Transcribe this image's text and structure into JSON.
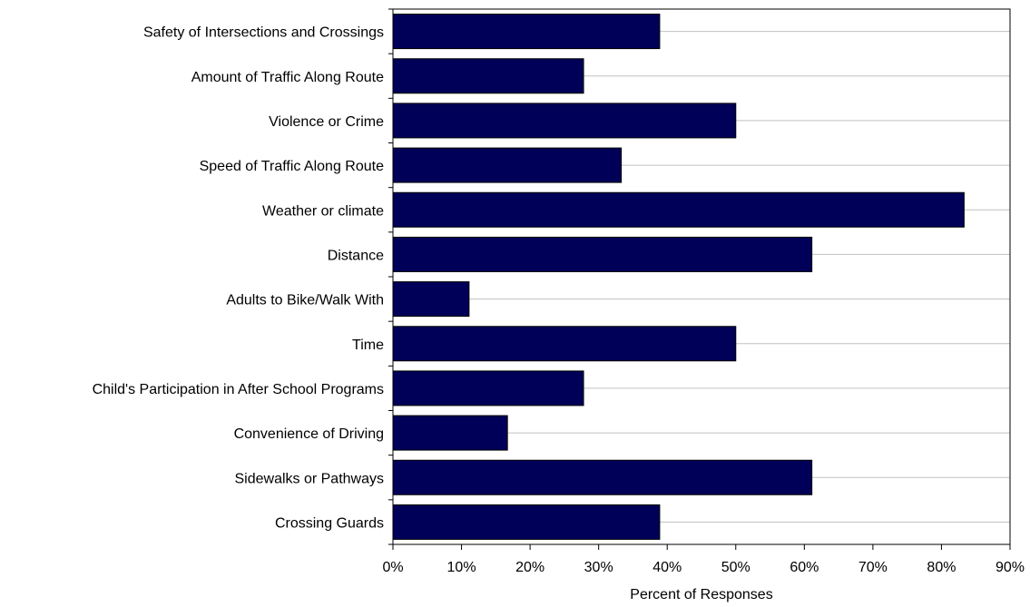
{
  "chart_data": {
    "type": "bar",
    "orientation": "horizontal",
    "categories": [
      "Safety of Intersections and Crossings",
      "Amount of Traffic Along Route",
      "Violence or Crime",
      "Speed of Traffic Along Route",
      "Weather or climate",
      "Distance",
      "Adults to Bike/Walk With",
      "Time",
      "Child's Participation in After School Programs",
      "Convenience of Driving",
      "Sidewalks or Pathways",
      "Crossing Guards"
    ],
    "values": [
      38.9,
      27.8,
      50.0,
      33.3,
      83.3,
      61.1,
      11.1,
      50.0,
      27.8,
      16.7,
      61.1,
      38.9
    ],
    "xlabel": "Percent of Responses",
    "ylabel": "",
    "xlim": [
      0,
      90
    ],
    "x_ticks": [
      "0%",
      "10%",
      "20%",
      "30%",
      "40%",
      "50%",
      "60%",
      "70%",
      "80%",
      "90%"
    ],
    "grid": "horizontal",
    "legend": "none",
    "colors": {
      "bar": "#000058",
      "grid": "#c0c0c0",
      "axis": "#000000"
    }
  }
}
